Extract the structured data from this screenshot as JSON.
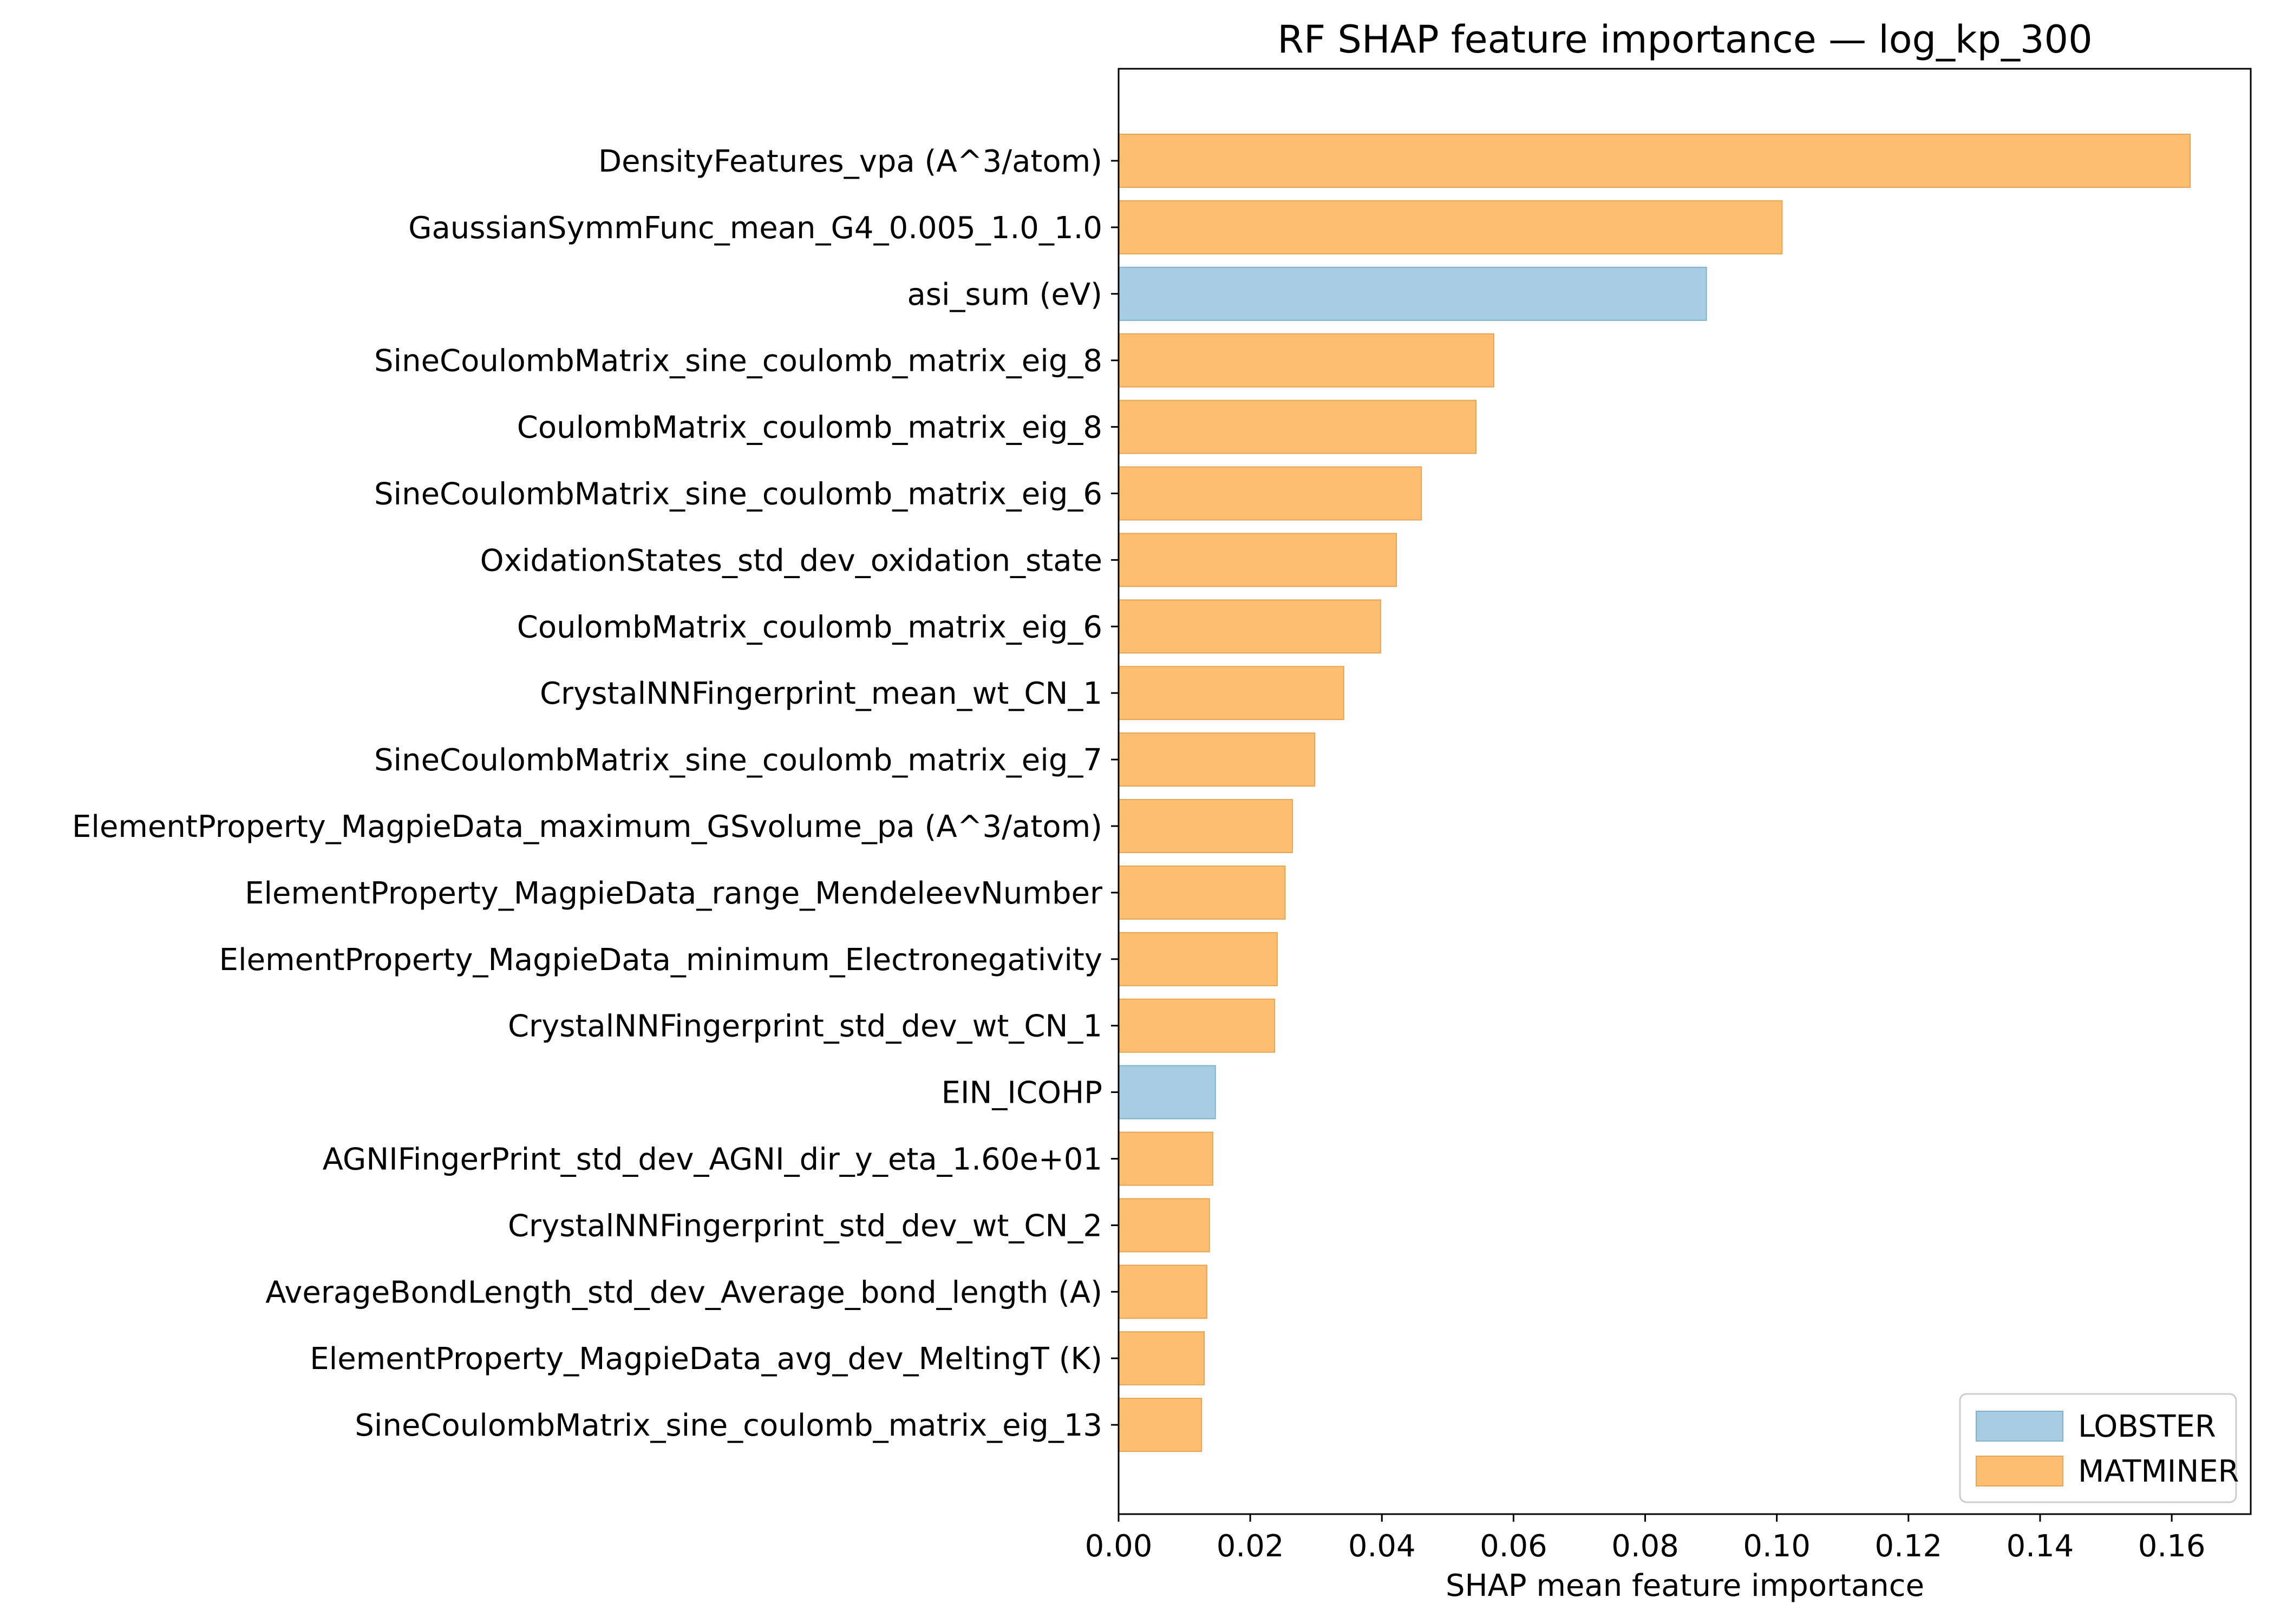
{
  "colors": {
    "LOBSTER": "#a6cde2",
    "MATMINER": "#fdbf6f",
    "LOBSTER_edge": "#7fb1cc",
    "MATMINER_edge": "#e6a556",
    "axis": "#000000"
  },
  "chart_data": {
    "type": "bar",
    "orientation": "horizontal",
    "title": "RF SHAP feature importance — log_kp_300",
    "xlabel": "SHAP mean feature importance",
    "ylabel": "",
    "xlim": [
      0,
      0.172
    ],
    "xticks": [
      0.0,
      0.02,
      0.04,
      0.06,
      0.08,
      0.1,
      0.12,
      0.14,
      0.16
    ],
    "xtick_labels": [
      "0.00",
      "0.02",
      "0.04",
      "0.06",
      "0.08",
      "0.10",
      "0.12",
      "0.14",
      "0.16"
    ],
    "legend": {
      "position": "lower-right",
      "entries": [
        {
          "name": "LOBSTER",
          "color_key": "LOBSTER"
        },
        {
          "name": "MATMINER",
          "color_key": "MATMINER"
        }
      ]
    },
    "bars": [
      {
        "label": "DensityFeatures_vpa (A^3/atom)",
        "value": 0.1628,
        "group": "MATMINER"
      },
      {
        "label": "GaussianSymmFunc_mean_G4_0.005_1.0_1.0",
        "value": 0.1008,
        "group": "MATMINER"
      },
      {
        "label": "asi_sum (eV)",
        "value": 0.0893,
        "group": "LOBSTER"
      },
      {
        "label": "SineCoulombMatrix_sine_coulomb_matrix_eig_8",
        "value": 0.057,
        "group": "MATMINER"
      },
      {
        "label": "CoulombMatrix_coulomb_matrix_eig_8",
        "value": 0.0543,
        "group": "MATMINER"
      },
      {
        "label": "SineCoulombMatrix_sine_coulomb_matrix_eig_6",
        "value": 0.046,
        "group": "MATMINER"
      },
      {
        "label": "OxidationStates_std_dev_oxidation_state",
        "value": 0.0422,
        "group": "MATMINER"
      },
      {
        "label": "CoulombMatrix_coulomb_matrix_eig_6",
        "value": 0.0398,
        "group": "MATMINER"
      },
      {
        "label": "CrystalNNFingerprint_mean_wt_CN_1",
        "value": 0.0342,
        "group": "MATMINER"
      },
      {
        "label": "SineCoulombMatrix_sine_coulomb_matrix_eig_7",
        "value": 0.0298,
        "group": "MATMINER"
      },
      {
        "label": "ElementProperty_MagpieData_maximum_GSvolume_pa (A^3/atom)",
        "value": 0.0264,
        "group": "MATMINER"
      },
      {
        "label": "ElementProperty_MagpieData_range_MendeleevNumber",
        "value": 0.0253,
        "group": "MATMINER"
      },
      {
        "label": "ElementProperty_MagpieData_minimum_Electronegativity",
        "value": 0.0241,
        "group": "MATMINER"
      },
      {
        "label": "CrystalNNFingerprint_std_dev_wt_CN_1",
        "value": 0.0237,
        "group": "MATMINER"
      },
      {
        "label": "EIN_ICOHP",
        "value": 0.0147,
        "group": "LOBSTER"
      },
      {
        "label": "AGNIFingerPrint_std_dev_AGNI_dir_y_eta_1.60e+01",
        "value": 0.0143,
        "group": "MATMINER"
      },
      {
        "label": "CrystalNNFingerprint_std_dev_wt_CN_2",
        "value": 0.0138,
        "group": "MATMINER"
      },
      {
        "label": "AverageBondLength_std_dev_Average_bond_length (A)",
        "value": 0.0134,
        "group": "MATMINER"
      },
      {
        "label": "ElementProperty_MagpieData_avg_dev_MeltingT (K)",
        "value": 0.013,
        "group": "MATMINER"
      },
      {
        "label": "SineCoulombMatrix_sine_coulomb_matrix_eig_13",
        "value": 0.0126,
        "group": "MATMINER"
      }
    ]
  }
}
